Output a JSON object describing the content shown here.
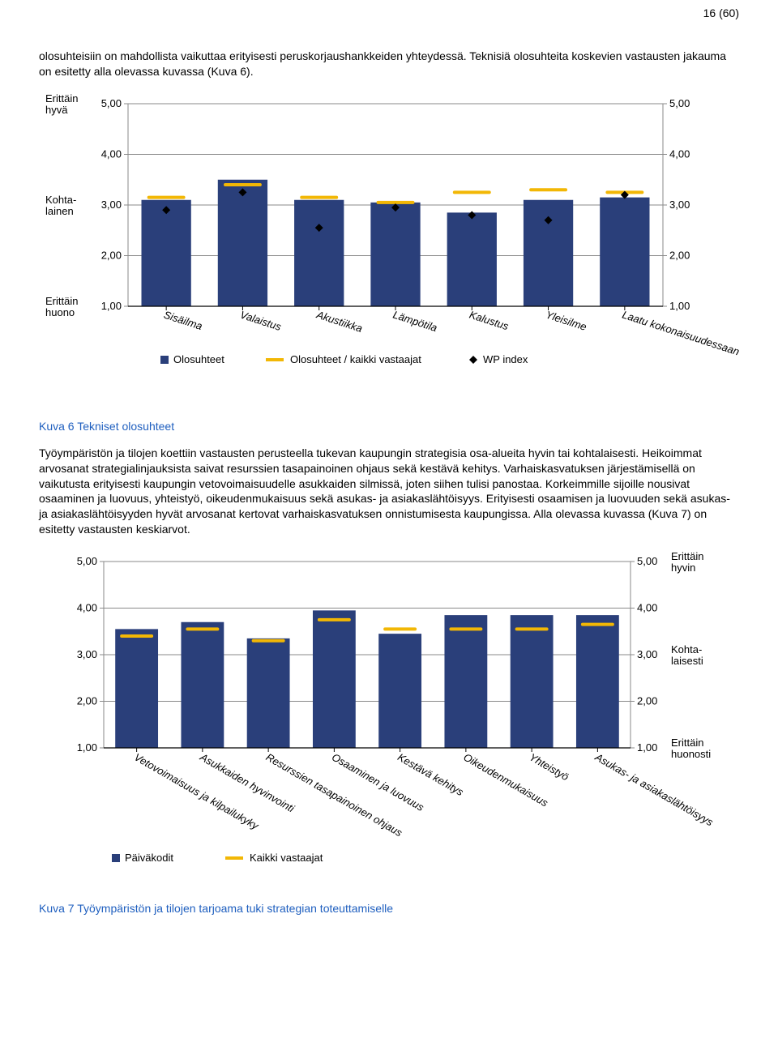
{
  "page_number": "16 (60)",
  "intro_text": "olosuhteisiin on mahdollista vaikuttaa erityisesti peruskorjaushankkeiden yhteydessä. Teknisiä olosuhteita koskevien vastausten jakauma on esitetty alla olevassa kuvassa (Kuva 6).",
  "figure6_caption": "Kuva 6 Tekniset olosuhteet",
  "mid_text": "Työympäristön ja tilojen koettiin vastausten perusteella tukevan kaupungin strategisia osa-alueita hyvin tai kohtalaisesti. Heikoimmat arvosanat strategialinjauksista saivat resurssien tasapainoinen ohjaus sekä kestävä kehitys. Varhaiskasvatuksen järjestämisellä on vaikutusta erityisesti kaupungin vetovoimaisuudelle asukkaiden silmissä, joten siihen tulisi panostaa. Korkeimmille sijoille nousivat osaaminen ja luovuus, yhteistyö, oikeudenmukaisuus sekä asukas- ja asiakaslähtöisyys. Erityisesti osaamisen ja luovuuden sekä asukas- ja asiakaslähtöisyyden hyvät arvosanat kertovat varhaiskasvatuksen onnistumisesta kaupungissa. Alla olevassa kuvassa (Kuva 7) on esitetty vastausten keskiarvot.",
  "figure7_caption": "Kuva 7 Työympäristön ja tilojen tarjoama tuki strategian toteuttamiselle",
  "chart1": {
    "type": "bar",
    "categories": [
      "Sisäilma",
      "Valaistus",
      "Akustiikka",
      "Lämpötila",
      "Kalustus",
      "Yleisilme",
      "Laatu kokonaisuudessaan"
    ],
    "bars": [
      3.1,
      3.5,
      3.1,
      3.05,
      2.85,
      3.1,
      3.15
    ],
    "dashes": [
      3.15,
      3.4,
      3.15,
      3.05,
      3.25,
      3.3,
      3.25
    ],
    "diamonds": [
      2.9,
      3.25,
      2.55,
      2.95,
      2.8,
      2.7,
      3.2
    ],
    "bar_color": "#2a3f7a",
    "dash_color": "#f2b705",
    "diamond_color": "#000000",
    "ylim": [
      1.0,
      5.0
    ],
    "ytick_step": 1.0,
    "yticks_labels": [
      "1,00",
      "2,00",
      "3,00",
      "4,00",
      "5,00"
    ],
    "left_axis_words": [
      {
        "label_top": "Erittäin",
        "label_bot": "hyvä",
        "at": 5.0
      },
      {
        "label_top": "Kohta-",
        "label_bot": "lainen",
        "at": 3.0
      },
      {
        "label_top": "Erittäin",
        "label_bot": "huono",
        "at": 1.0
      }
    ],
    "bar_width": 0.65,
    "area_bg": "#ffffff",
    "grid_color": "#8a8a8a",
    "plot_border_color": "#8a8a8a",
    "legend": [
      {
        "type": "square",
        "label": "Olosuhteet"
      },
      {
        "type": "line",
        "label": "Olosuhteet / kaikki vastaajat"
      },
      {
        "type": "diamond",
        "label": "WP index"
      }
    ]
  },
  "chart2": {
    "type": "bar",
    "categories": [
      "Vetovoimaisuus ja kilpailukyky",
      "Asukkaiden hyvinvointi",
      "Resurssien tasapainoinen ohjaus",
      "Osaaminen ja luovuus",
      "Kestävä kehitys",
      "Oikeudenmukaisuus",
      "Yhteistyö",
      "Asukas- ja asiakaslähtöisyys"
    ],
    "bars": [
      3.55,
      3.7,
      3.35,
      3.95,
      3.45,
      3.85,
      3.85,
      3.85
    ],
    "dashes": [
      3.4,
      3.55,
      3.3,
      3.75,
      3.55,
      3.55,
      3.55,
      3.65
    ],
    "bar_color": "#2a3f7a",
    "dash_color": "#f2b705",
    "ylim": [
      1.0,
      5.0
    ],
    "ytick_step": 1.0,
    "yticks_labels": [
      "1,00",
      "2,00",
      "3,00",
      "4,00",
      "5,00"
    ],
    "right_axis_words": [
      {
        "label_top": "Erittäin",
        "label_bot": "hyvin",
        "at": 5.0
      },
      {
        "label_top": "Kohta-",
        "label_bot": "laisesti",
        "at": 3.0
      },
      {
        "label_top": "Erittäin",
        "label_bot": "huonosti",
        "at": 1.0
      }
    ],
    "bar_width": 0.65,
    "area_bg": "#ffffff",
    "grid_color": "#8a8a8a",
    "plot_border_color": "#8a8a8a",
    "legend": [
      {
        "type": "square",
        "label": "Päiväkodit"
      },
      {
        "type": "line",
        "label": "Kaikki vastaajat"
      }
    ]
  }
}
